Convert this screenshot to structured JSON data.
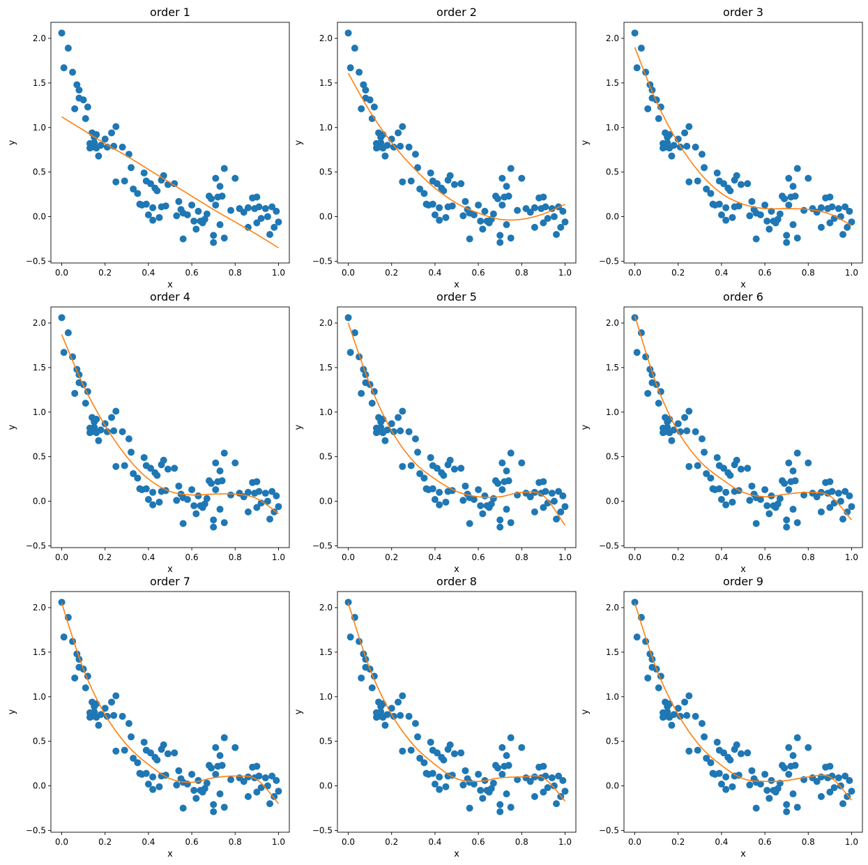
{
  "colors": {
    "points": "#1f77b4",
    "fit": "#ff7f0e"
  },
  "chart_data": {
    "type": "scatter",
    "layout": "3x3 grid",
    "xlabel": "x",
    "ylabel": "y",
    "xlim": [
      -0.05,
      1.05
    ],
    "ylim": [
      -0.52,
      2.18
    ],
    "xticks": [
      0.0,
      0.2,
      0.4,
      0.6,
      0.8,
      1.0
    ],
    "xtick_labels": [
      "0.0",
      "0.2",
      "0.4",
      "0.6",
      "0.8",
      "1.0"
    ],
    "yticks": [
      -0.5,
      0.0,
      0.5,
      1.0,
      1.5,
      2.0
    ],
    "ytick_labels": [
      "−0.5",
      "0.0",
      "0.5",
      "1.0",
      "1.5",
      "2.0"
    ],
    "points": {
      "x": [
        0.0,
        0.01,
        0.03,
        0.05,
        0.06,
        0.07,
        0.08,
        0.08,
        0.1,
        0.11,
        0.12,
        0.13,
        0.13,
        0.14,
        0.14,
        0.15,
        0.15,
        0.16,
        0.16,
        0.17,
        0.18,
        0.2,
        0.21,
        0.23,
        0.24,
        0.25,
        0.25,
        0.28,
        0.29,
        0.31,
        0.32,
        0.33,
        0.35,
        0.36,
        0.37,
        0.38,
        0.39,
        0.39,
        0.4,
        0.41,
        0.42,
        0.42,
        0.43,
        0.44,
        0.45,
        0.46,
        0.46,
        0.47,
        0.48,
        0.49,
        0.52,
        0.53,
        0.54,
        0.55,
        0.56,
        0.56,
        0.58,
        0.6,
        0.61,
        0.62,
        0.63,
        0.64,
        0.65,
        0.66,
        0.67,
        0.68,
        0.69,
        0.7,
        0.7,
        0.71,
        0.71,
        0.72,
        0.73,
        0.73,
        0.74,
        0.75,
        0.75,
        0.78,
        0.8,
        0.82,
        0.84,
        0.86,
        0.86,
        0.88,
        0.89,
        0.9,
        0.9,
        0.91,
        0.92,
        0.94,
        0.95,
        0.96,
        0.97,
        0.98,
        0.99,
        1.0
      ],
      "y": [
        2.06,
        1.67,
        1.89,
        1.62,
        1.21,
        1.48,
        1.42,
        1.33,
        1.31,
        1.1,
        1.23,
        0.77,
        0.82,
        0.94,
        0.78,
        0.83,
        0.89,
        0.92,
        0.77,
        0.68,
        0.8,
        0.87,
        0.78,
        0.94,
        0.79,
        1.01,
        0.39,
        0.78,
        0.4,
        0.7,
        0.55,
        0.31,
        0.26,
        0.14,
        0.13,
        0.49,
        0.14,
        0.4,
        0.02,
        0.37,
        0.1,
        -0.04,
        0.32,
        0.29,
        -0.01,
        0.11,
        0.41,
        0.46,
        0.12,
        0.36,
        0.37,
        0.01,
        0.17,
        0.08,
        0.04,
        -0.25,
        0.02,
        0.13,
        -0.05,
        -0.14,
        0.06,
        -0.05,
        -0.07,
        -0.03,
        0.03,
        0.23,
        0.2,
        -0.21,
        -0.29,
        0.43,
        0.13,
        0.22,
        -0.09,
        0.34,
        0.23,
        0.54,
        -0.24,
        0.07,
        0.43,
        0.09,
        0.05,
        0.1,
        -0.12,
        0.21,
        0.09,
        -0.07,
        0.22,
        0.11,
        -0.02,
        0.09,
        0.0,
        -0.2,
        0.11,
        -0.12,
        0.06,
        -0.06
      ]
    },
    "panels": [
      {
        "title": "order 1",
        "fit_x": [
          0,
          0.1,
          0.2,
          0.3,
          0.4,
          0.5,
          0.6,
          0.7,
          0.8,
          0.9,
          1.0
        ],
        "fit_y": [
          1.12,
          0.97,
          0.82,
          0.68,
          0.53,
          0.38,
          0.23,
          0.08,
          -0.06,
          -0.2,
          -0.35
        ]
      },
      {
        "title": "order 2",
        "fit_x": [
          0,
          0.1,
          0.2,
          0.3,
          0.4,
          0.5,
          0.6,
          0.7,
          0.8,
          0.9,
          1.0
        ],
        "fit_y": [
          1.61,
          1.18,
          0.83,
          0.55,
          0.32,
          0.15,
          0.04,
          -0.03,
          -0.03,
          0.03,
          0.14
        ]
      },
      {
        "title": "order 3",
        "fit_x": [
          0,
          0.1,
          0.2,
          0.3,
          0.4,
          0.5,
          0.6,
          0.7,
          0.8,
          0.9,
          1.0
        ],
        "fit_y": [
          1.9,
          1.29,
          0.83,
          0.49,
          0.26,
          0.14,
          0.09,
          0.09,
          0.08,
          0.03,
          -0.1
        ]
      },
      {
        "title": "order 4",
        "fit_x": [
          0,
          0.1,
          0.2,
          0.3,
          0.4,
          0.5,
          0.6,
          0.7,
          0.8,
          0.9,
          1.0
        ],
        "fit_y": [
          1.87,
          1.3,
          0.85,
          0.5,
          0.25,
          0.11,
          0.07,
          0.08,
          0.08,
          0.03,
          -0.14
        ]
      },
      {
        "title": "order 5",
        "fit_x": [
          0,
          0.1,
          0.2,
          0.3,
          0.4,
          0.5,
          0.6,
          0.7,
          0.8,
          0.9,
          1.0
        ],
        "fit_y": [
          2.0,
          1.31,
          0.79,
          0.45,
          0.25,
          0.11,
          0.05,
          0.05,
          0.1,
          0.06,
          -0.27
        ]
      },
      {
        "title": "order 6",
        "fit_x": [
          0,
          0.1,
          0.2,
          0.3,
          0.4,
          0.5,
          0.6,
          0.7,
          0.8,
          0.9,
          1.0
        ],
        "fit_y": [
          2.08,
          1.31,
          0.78,
          0.45,
          0.25,
          0.1,
          0.05,
          0.08,
          0.1,
          0.06,
          -0.21
        ]
      },
      {
        "title": "order 7",
        "fit_x": [
          0,
          0.1,
          0.2,
          0.3,
          0.4,
          0.5,
          0.6,
          0.7,
          0.8,
          0.9,
          1.0
        ],
        "fit_y": [
          2.05,
          1.31,
          0.8,
          0.46,
          0.24,
          0.08,
          0.04,
          0.09,
          0.11,
          0.07,
          -0.2
        ]
      },
      {
        "title": "order 8",
        "fit_x": [
          0,
          0.1,
          0.2,
          0.3,
          0.4,
          0.5,
          0.6,
          0.7,
          0.8,
          0.9,
          1.0
        ],
        "fit_y": [
          2.05,
          1.31,
          0.8,
          0.46,
          0.24,
          0.08,
          0.05,
          0.09,
          0.1,
          0.09,
          -0.17
        ]
      },
      {
        "title": "order 9",
        "fit_x": [
          0,
          0.1,
          0.2,
          0.3,
          0.4,
          0.5,
          0.6,
          0.7,
          0.8,
          0.9,
          1.0
        ],
        "fit_y": [
          2.05,
          1.31,
          0.8,
          0.45,
          0.23,
          0.08,
          0.05,
          0.06,
          0.1,
          0.1,
          -0.16
        ]
      }
    ]
  }
}
